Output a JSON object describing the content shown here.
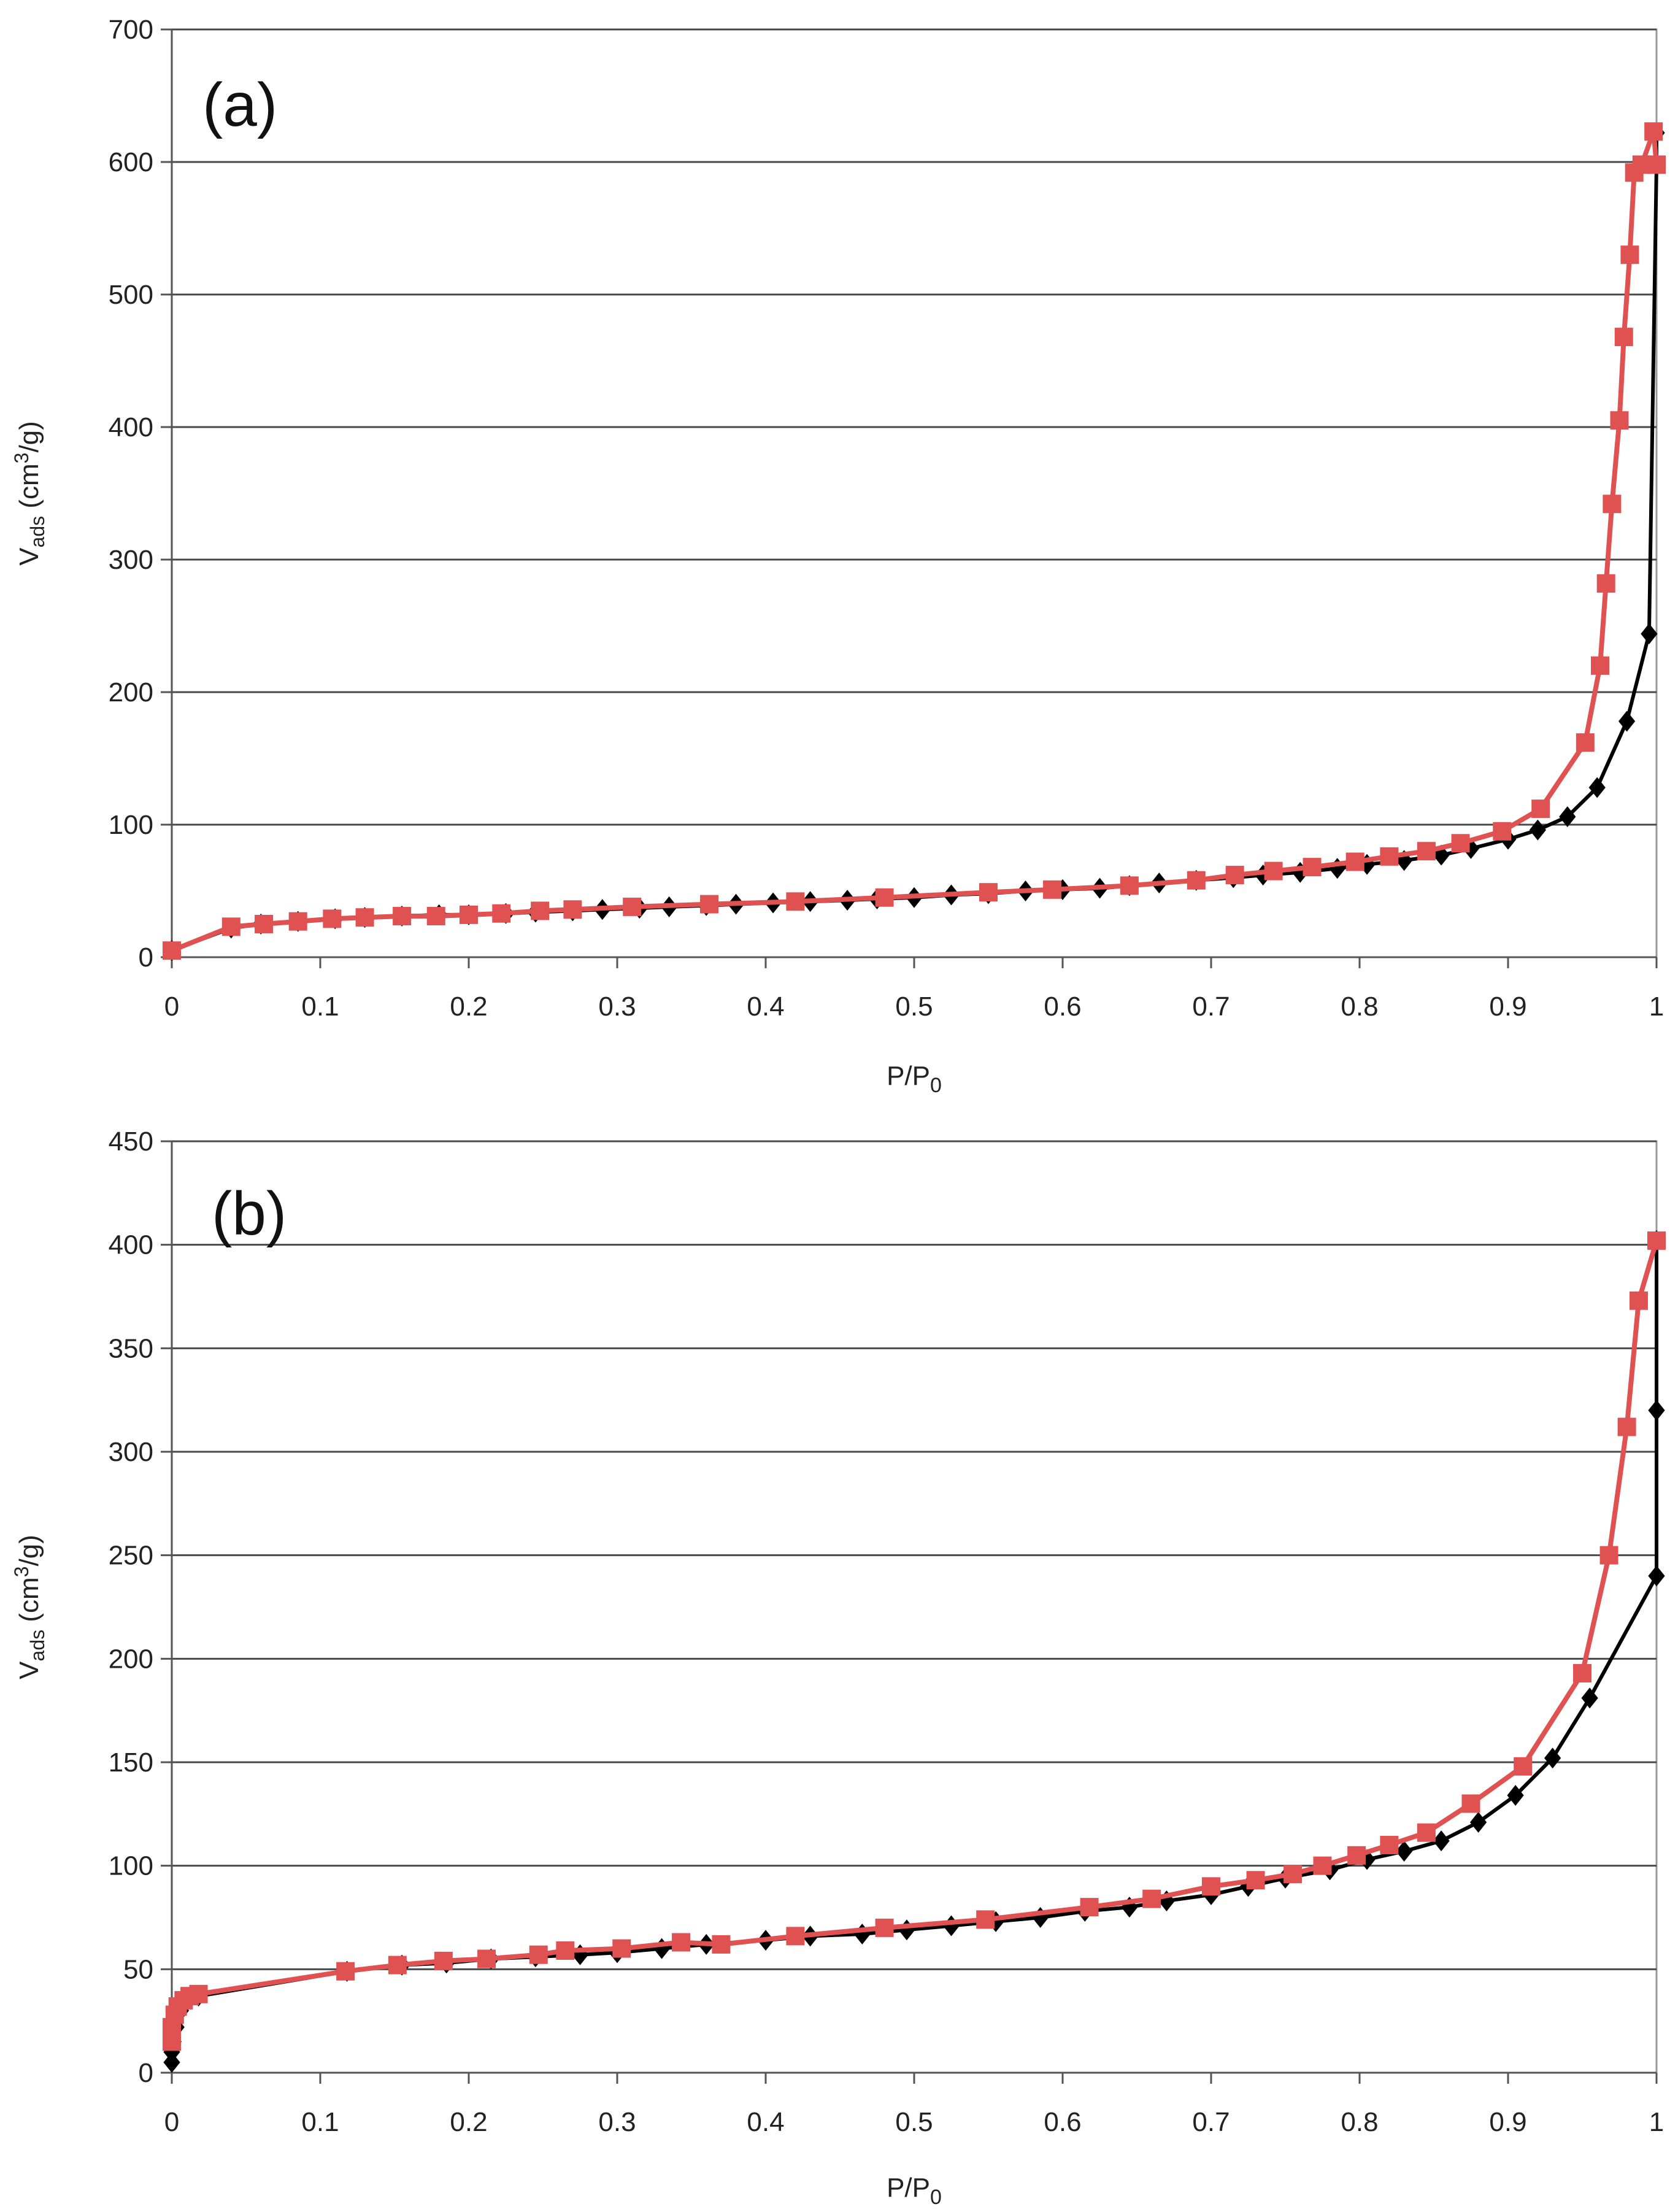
{
  "chart_data": [
    {
      "type": "line",
      "title": "(a)",
      "xlabel": "P/P",
      "xlabel_sub": "0",
      "ylabel": "V",
      "ylabel_sub": "ads",
      "ylabel_unit": " (cm",
      "ylabel_sup": "3",
      "ylabel_tail": "/g)",
      "xlim": [
        0,
        1
      ],
      "ylim": [
        0,
        700
      ],
      "x_ticks": [
        "0",
        "0.1",
        "0.2",
        "0.3",
        "0.4",
        "0.5",
        "0.6",
        "0.7",
        "0.8",
        "0.9",
        "1"
      ],
      "y_ticks": [
        "0",
        "100",
        "200",
        "300",
        "400",
        "500",
        "600",
        "700"
      ],
      "grid": true,
      "series": [
        {
          "color": "#000000",
          "marker": "diamond",
          "x": [
            0.0,
            0.04,
            0.06,
            0.085,
            0.11,
            0.13,
            0.155,
            0.18,
            0.2,
            0.225,
            0.245,
            0.27,
            0.29,
            0.315,
            0.335,
            0.36,
            0.38,
            0.405,
            0.43,
            0.455,
            0.475,
            0.5,
            0.525,
            0.55,
            0.575,
            0.6,
            0.625,
            0.645,
            0.665,
            0.69,
            0.715,
            0.735,
            0.76,
            0.785,
            0.805,
            0.83,
            0.855,
            0.875,
            0.9,
            0.92,
            0.94,
            0.96,
            0.98,
            0.995,
            1.0,
            1.0
          ],
          "y": [
            5,
            22,
            25,
            27,
            29,
            30,
            31,
            32,
            32,
            33,
            34,
            35,
            36,
            37,
            38,
            39,
            40,
            41,
            42,
            43,
            44,
            45,
            47,
            48,
            50,
            51,
            52,
            54,
            56,
            58,
            60,
            62,
            64,
            67,
            70,
            73,
            77,
            82,
            89,
            96,
            106,
            128,
            178,
            244,
            598,
            622
          ]
        },
        {
          "color": "#e05252",
          "marker": "square",
          "x": [
            0.0,
            0.04,
            0.062,
            0.085,
            0.108,
            0.13,
            0.155,
            0.178,
            0.2,
            0.222,
            0.248,
            0.27,
            0.31,
            0.362,
            0.42,
            0.48,
            0.55,
            0.593,
            0.645,
            0.69,
            0.716,
            0.742,
            0.768,
            0.797,
            0.82,
            0.845,
            0.868,
            0.896,
            0.922,
            0.952,
            0.962,
            0.966,
            0.97,
            0.975,
            0.978,
            0.982,
            0.985,
            0.99,
            0.998,
            1.0
          ],
          "y": [
            5,
            23,
            25,
            27,
            29,
            30,
            31,
            31,
            32,
            33,
            35,
            36,
            38,
            40,
            42,
            45,
            49,
            51,
            54,
            58,
            62,
            65,
            68,
            72,
            76,
            80,
            86,
            95,
            112,
            162,
            220,
            282,
            342,
            405,
            468,
            530,
            592,
            598,
            623,
            598
          ]
        }
      ]
    },
    {
      "type": "line",
      "title": "(b)",
      "xlabel": "P/P",
      "xlabel_sub": "0",
      "ylabel": "V",
      "ylabel_sub": "ads",
      "ylabel_unit": " (cm",
      "ylabel_sup": "3",
      "ylabel_tail": "/g)",
      "xlim": [
        0,
        1
      ],
      "ylim": [
        0,
        450
      ],
      "x_ticks": [
        "0",
        "0.1",
        "0.2",
        "0.3",
        "0.4",
        "0.5",
        "0.6",
        "0.7",
        "0.8",
        "0.9",
        "1"
      ],
      "y_ticks": [
        "0",
        "50",
        "100",
        "150",
        "200",
        "250",
        "300",
        "350",
        "400",
        "450"
      ],
      "grid": true,
      "series": [
        {
          "color": "#000000",
          "marker": "diamond",
          "x": [
            0.0,
            0.0,
            0.001,
            0.003,
            0.006,
            0.01,
            0.018,
            0.118,
            0.155,
            0.185,
            0.215,
            0.245,
            0.275,
            0.3,
            0.33,
            0.36,
            0.4,
            0.43,
            0.465,
            0.495,
            0.525,
            0.555,
            0.585,
            0.615,
            0.645,
            0.67,
            0.7,
            0.725,
            0.75,
            0.78,
            0.805,
            0.83,
            0.855,
            0.88,
            0.905,
            0.93,
            0.955,
            1.0,
            1.0,
            1.0
          ],
          "y": [
            5,
            10,
            15,
            22,
            30,
            35,
            37,
            49,
            52,
            53,
            55,
            56,
            57,
            58,
            60,
            62,
            64,
            66,
            67,
            69,
            71,
            73,
            75,
            78,
            80,
            83,
            86,
            90,
            94,
            98,
            103,
            107,
            112,
            121,
            134,
            152,
            181,
            240,
            320,
            402
          ]
        },
        {
          "color": "#e05252",
          "marker": "square",
          "x": [
            0.0,
            0.0,
            0.002,
            0.004,
            0.008,
            0.012,
            0.018,
            0.117,
            0.152,
            0.183,
            0.212,
            0.247,
            0.265,
            0.303,
            0.343,
            0.37,
            0.42,
            0.48,
            0.548,
            0.618,
            0.66,
            0.7,
            0.73,
            0.755,
            0.775,
            0.798,
            0.82,
            0.845,
            0.875,
            0.91,
            0.95,
            0.968,
            0.98,
            0.988,
            1.0
          ],
          "y": [
            15,
            22,
            28,
            32,
            35,
            37,
            38,
            49,
            52,
            54,
            55,
            57,
            59,
            60,
            63,
            62,
            66,
            70,
            74,
            80,
            84,
            90,
            93,
            96,
            100,
            105,
            110,
            116,
            130,
            148,
            193,
            250,
            312,
            373,
            402
          ]
        }
      ]
    }
  ]
}
